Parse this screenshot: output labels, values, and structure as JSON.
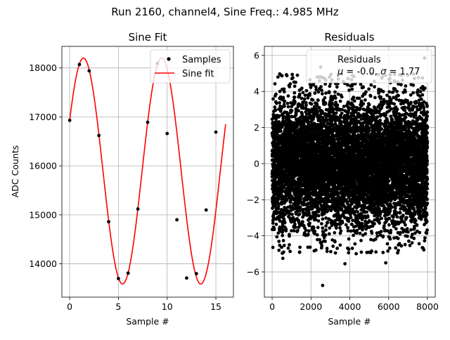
{
  "figure": {
    "suptitle": "Run 2160, channel4, Sine Freq.: 4.985 MHz"
  },
  "chart_data": [
    {
      "type": "scatter+line",
      "title": "Sine Fit",
      "xlabel": "Sample #",
      "ylabel": "ADC Counts",
      "xlim": [
        -0.8,
        16.8
      ],
      "ylim": [
        13320,
        18440
      ],
      "xticks": [
        0,
        5,
        10,
        15
      ],
      "yticks": [
        14000,
        15000,
        16000,
        17000,
        18000
      ],
      "grid": true,
      "legend": {
        "placement": "top-right",
        "entries": [
          "Samples",
          "Sine fit"
        ]
      },
      "colors": {
        "samples": "#000000",
        "fit": "#ff0000"
      },
      "series": [
        {
          "name": "Samples",
          "kind": "scatter",
          "x": [
            0,
            1,
            2,
            3,
            4,
            5,
            6,
            7,
            8,
            9,
            10,
            11,
            12,
            13,
            14,
            15
          ],
          "y": [
            16930,
            18070,
            17940,
            16620,
            14860,
            13700,
            13810,
            15120,
            16890,
            18090,
            16660,
            14900,
            13710,
            13800,
            15100,
            16690
          ]
        },
        {
          "name": "Sine fit",
          "kind": "line",
          "model": "offset + amplitude*sin(2*pi*freq*x + phase)",
          "offset": 15895,
          "amplitude": 2305,
          "freq": 0.124625,
          "phase": 0.4653,
          "x_range": [
            0,
            16
          ]
        }
      ]
    },
    {
      "type": "scatter",
      "title": "Residuals",
      "xlabel": "Sample #",
      "ylabel": "",
      "xlim": [
        -400,
        8400
      ],
      "ylim": [
        -7.4,
        6.5
      ],
      "xticks": [
        0,
        2000,
        4000,
        6000,
        8000
      ],
      "yticks": [
        -6,
        -4,
        -2,
        0,
        2,
        4,
        6
      ],
      "grid": true,
      "legend": {
        "placement": "top-right",
        "entries": [
          "Residuals",
          "μ = -0.0, σ = 1.77"
        ]
      },
      "colors": {
        "points": "#000000"
      },
      "series": [
        {
          "name": "Residuals",
          "kind": "scatter",
          "n_points": 8000,
          "mean": -0.0,
          "sigma": 1.77,
          "outliers": [
            {
              "x": 2600,
              "y": -6.75
            },
            {
              "x": 2500,
              "y": 5.35
            },
            {
              "x": 7850,
              "y": 5.85
            },
            {
              "x": 3750,
              "y": -5.55
            },
            {
              "x": 5850,
              "y": -5.5
            },
            {
              "x": 550,
              "y": -5.25
            },
            {
              "x": 300,
              "y": 4.8
            },
            {
              "x": 7000,
              "y": 4.9
            }
          ]
        }
      ]
    }
  ]
}
